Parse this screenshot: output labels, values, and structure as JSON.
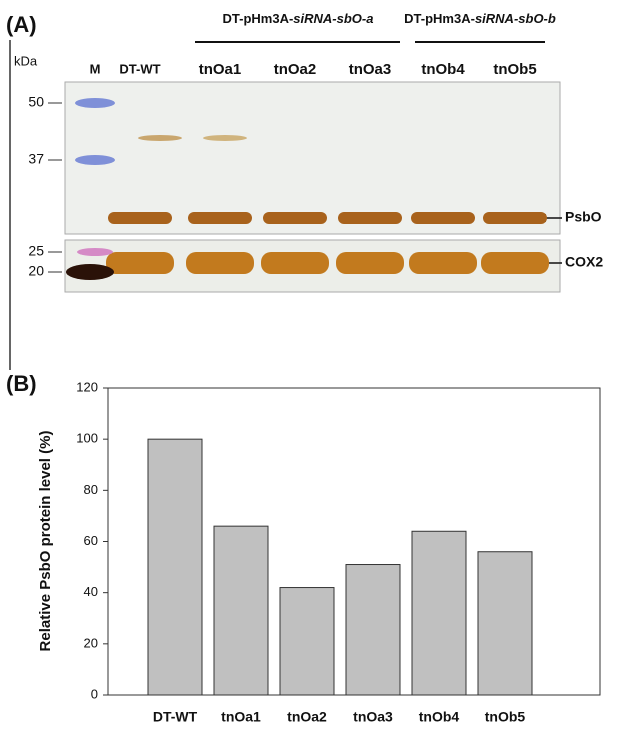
{
  "gel": {
    "panel": "(A)",
    "unit": "kDa",
    "lanes": [
      "M",
      "DT-WT",
      "tnOa1",
      "tnOa2",
      "tnOa3",
      "tnOb4",
      "tnOb5"
    ],
    "groups": [
      {
        "text": "DT-pHm3A-",
        "italic": "siRNA-sbO-a"
      },
      {
        "text": "DT-pHm3A-",
        "italic": "siRNA-sbO-b"
      }
    ],
    "markers": [
      50,
      37,
      25,
      20
    ],
    "bands": [
      "PsbO",
      "COX2"
    ]
  },
  "chart_data": {
    "type": "bar",
    "panel": "(B)",
    "ylabel": "Relative PsbO protein level (%)",
    "categories": [
      "DT-WT",
      "tnOa1",
      "tnOa2",
      "tnOa3",
      "tnOb4",
      "tnOb5"
    ],
    "values": [
      100,
      66,
      42,
      51,
      64,
      56
    ],
    "color": "#c0c0c0",
    "ylim": [
      0,
      120
    ],
    "yticks": [
      0,
      20,
      40,
      60,
      80,
      100,
      120
    ],
    "grid": false
  }
}
